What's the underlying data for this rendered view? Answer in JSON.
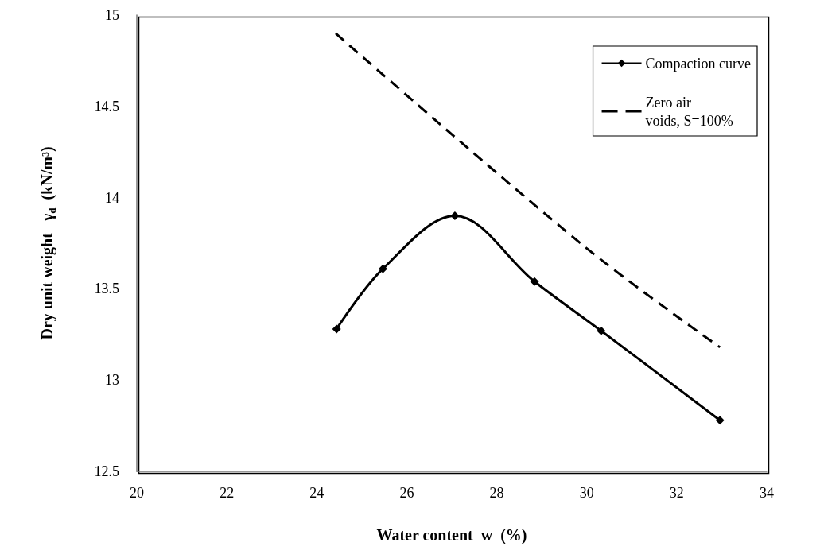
{
  "chart_data": {
    "type": "line",
    "xlabel": "Water content  w  (%)",
    "ylabel": "Dry unit weight   γ$_{d}$  (kN/m³)",
    "xlim": [
      20,
      34
    ],
    "xticks": [
      20,
      22,
      24,
      26,
      28,
      30,
      32,
      34
    ],
    "ylim": [
      12.5,
      15
    ],
    "yticks": [
      12.5,
      13,
      13.5,
      14,
      14.5,
      15
    ],
    "grid": false,
    "legend": "top right",
    "series": [
      {
        "name": "Compaction curve",
        "color": "#000000",
        "marker": "diamond",
        "line_style": "solid",
        "x": [
          24.44,
          25.47,
          27.07,
          28.84,
          30.32,
          32.96
        ],
        "values": [
          13.28,
          13.61,
          13.9,
          13.54,
          13.27,
          12.78
        ]
      },
      {
        "name": "Zero air\nvoids, S=100%",
        "color": "#000000",
        "marker": "none",
        "line_style": "dashed",
        "x": [
          24.42,
          29.96,
          32.96
        ],
        "values": [
          14.9,
          13.73,
          13.18
        ]
      }
    ]
  }
}
